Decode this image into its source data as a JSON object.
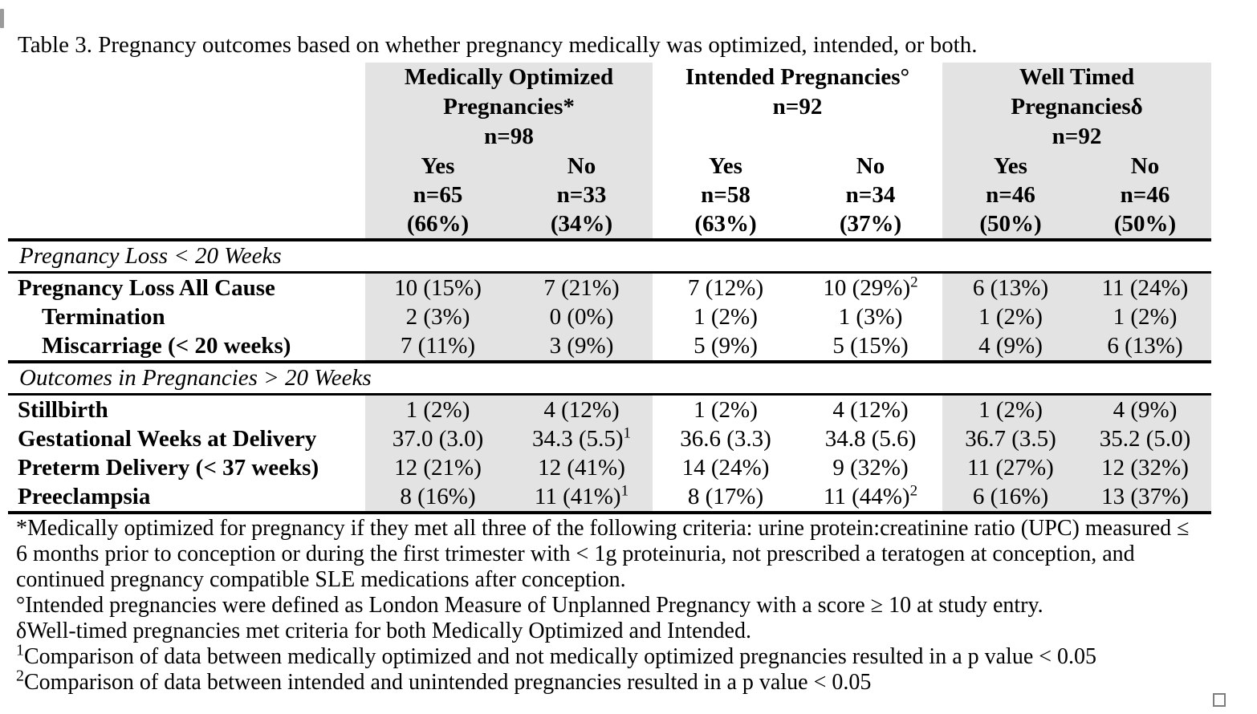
{
  "caption": "Table 3. Pregnancy outcomes based on whether pregnancy medically was optimized, intended, or both.",
  "table": {
    "groups": [
      {
        "l1": "Medically Optimized",
        "l2": "Pregnancies*",
        "l3": "n=98",
        "cols": [
          {
            "label": "Yes",
            "n": "n=65",
            "pct": "(66%)"
          },
          {
            "label": "No",
            "n": "n=33",
            "pct": "(34%)"
          }
        ]
      },
      {
        "l1": "Intended Pregnancies°",
        "l2": "n=92",
        "l3": "",
        "cols": [
          {
            "label": "Yes",
            "n": "n=58",
            "pct": "(63%)"
          },
          {
            "label": "No",
            "n": "n=34",
            "pct": "(37%)"
          }
        ]
      },
      {
        "l1": "Well Timed",
        "l2": "Pregnanciesδ",
        "l3": "n=92",
        "cols": [
          {
            "label": "Yes",
            "n": "n=46",
            "pct": "(50%)"
          },
          {
            "label": "No",
            "n": "n=46",
            "pct": "(50%)"
          }
        ]
      }
    ],
    "sections": [
      {
        "header": "Pregnancy Loss < 20 Weeks",
        "rows": [
          {
            "label": "Pregnancy Loss All Cause",
            "indent": false,
            "values": [
              {
                "v": "10 (15%)"
              },
              {
                "v": "7 (21%)"
              },
              {
                "v": "7 (12%)"
              },
              {
                "v": "10 (29%)",
                "s": "2"
              },
              {
                "v": "6 (13%)"
              },
              {
                "v": "11 (24%)"
              }
            ]
          },
          {
            "label": "Termination",
            "indent": true,
            "values": [
              {
                "v": "2 (3%)"
              },
              {
                "v": "0 (0%)"
              },
              {
                "v": "1 (2%)"
              },
              {
                "v": "1 (3%)"
              },
              {
                "v": "1 (2%)"
              },
              {
                "v": "1 (2%)"
              }
            ]
          },
          {
            "label": "Miscarriage (< 20 weeks)",
            "indent": true,
            "values": [
              {
                "v": "7 (11%)"
              },
              {
                "v": "3 (9%)"
              },
              {
                "v": "5 (9%)"
              },
              {
                "v": "5 (15%)"
              },
              {
                "v": "4 (9%)"
              },
              {
                "v": "6 (13%)"
              }
            ]
          }
        ]
      },
      {
        "header": "Outcomes in Pregnancies > 20 Weeks",
        "rows": [
          {
            "label": "Stillbirth",
            "indent": false,
            "values": [
              {
                "v": "1 (2%)"
              },
              {
                "v": "4 (12%)"
              },
              {
                "v": "1 (2%)"
              },
              {
                "v": "4 (12%)"
              },
              {
                "v": "1 (2%)"
              },
              {
                "v": "4 (9%)"
              }
            ]
          },
          {
            "label": "Gestational Weeks at Delivery",
            "indent": false,
            "values": [
              {
                "v": "37.0 (3.0)"
              },
              {
                "v": "34.3 (5.5)",
                "s": "1"
              },
              {
                "v": "36.6 (3.3)"
              },
              {
                "v": "34.8 (5.6)"
              },
              {
                "v": "36.7 (3.5)"
              },
              {
                "v": "35.2 (5.0)"
              }
            ]
          },
          {
            "label": "Preterm Delivery (< 37 weeks)",
            "indent": false,
            "values": [
              {
                "v": "12 (21%)"
              },
              {
                "v": "12 (41%)"
              },
              {
                "v": "14 (24%)"
              },
              {
                "v": "9 (32%)"
              },
              {
                "v": "11 (27%)"
              },
              {
                "v": "12 (32%)"
              }
            ]
          },
          {
            "label": "Preeclampsia",
            "indent": false,
            "values": [
              {
                "v": "8 (16%)"
              },
              {
                "v": "11 (41%)",
                "s": "1"
              },
              {
                "v": "8 (17%)"
              },
              {
                "v": "11 (44%)",
                "s": "2"
              },
              {
                "v": "6 (16%)"
              },
              {
                "v": "13 (37%)"
              }
            ]
          }
        ]
      }
    ]
  },
  "footnotes": [
    {
      "sup": "",
      "text": "*Medically optimized for pregnancy if they met all three of the following criteria: urine protein:creatinine ratio (UPC) measured ≤ 6 months prior to conception or during the first trimester with < 1g proteinuria, not prescribed a teratogen at conception, and continued pregnancy compatible SLE medications after conception."
    },
    {
      "sup": "",
      "text": "°Intended pregnancies were defined as London Measure of Unplanned Pregnancy with a score ≥ 10 at study entry."
    },
    {
      "sup": "",
      "text": "δWell-timed pregnancies met criteria for both Medically Optimized and Intended."
    },
    {
      "sup": "1",
      "text": "Comparison of data between medically optimized and not medically optimized pregnancies resulted in a p value < 0.05"
    },
    {
      "sup": "2",
      "text": "Comparison of data between intended and unintended pregnancies resulted in a p value < 0.05"
    }
  ],
  "colors": {
    "shade": "#e3e3e3",
    "rule": "#000000",
    "text": "#000000"
  }
}
